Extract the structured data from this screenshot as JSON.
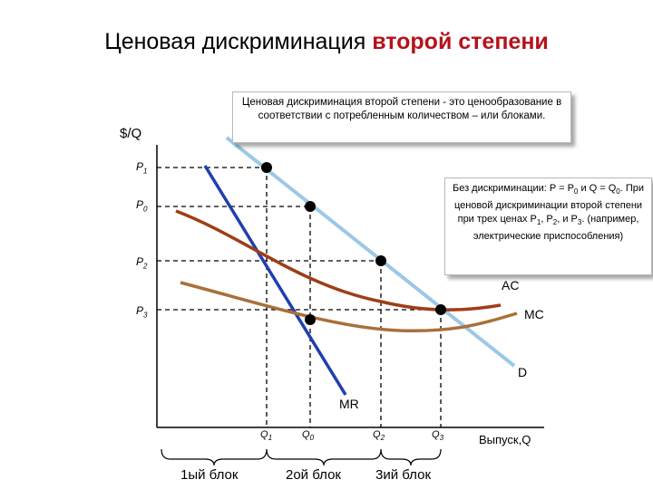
{
  "title": {
    "main": "Ценовая дискриминация ",
    "accent": "второй степени"
  },
  "colors": {
    "accent": "#b5121b",
    "demand": "#9cc8e8",
    "mr": "#1f3fb0",
    "ac": "#9e3e17",
    "mc": "#a9703a"
  },
  "note_top": "Ценовая дискриминация второй степени - это ценообразование в соответствии с потребленным количеством – или блоками.",
  "note_right": {
    "line1": "Без дискриминации: P = P",
    "s1": "0",
    "line2": "и Q = Q",
    "s2": "0",
    "line3": ". При ценовой дискриминации второй степени при трех ценах P",
    "s3": "1",
    "line4": ", P",
    "s4": "2",
    "line5": ", и P",
    "s5": "3",
    "line6": ". (например, электрические приспособления)"
  },
  "axes": {
    "ylabel": "$/Q",
    "xlabel": "Выпуск,Q"
  },
  "price_labels": {
    "p1": "P",
    "p1s": "1",
    "p0": "P",
    "p0s": "0",
    "p2": "P",
    "p2s": "2",
    "p3": "P",
    "p3s": "3"
  },
  "quantity_labels": {
    "q1": "Q",
    "q1s": "1",
    "q0": "Q",
    "q0s": "0",
    "q2": "Q",
    "q2s": "2",
    "q3": "Q",
    "q3s": "3"
  },
  "curve_labels": {
    "ac": "AC",
    "mc": "MC",
    "d": "D",
    "mr": "MR"
  },
  "blocks": {
    "b1": "1ый блок",
    "b2": "2ой блок",
    "b3": "3ий блок"
  }
}
